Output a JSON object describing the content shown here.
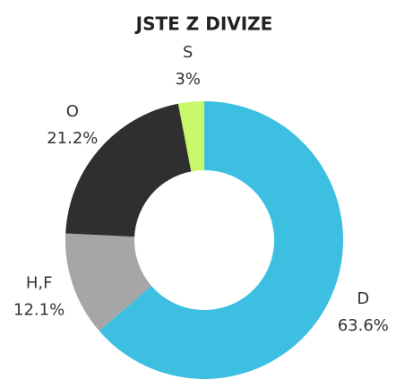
{
  "chart_data": {
    "type": "donut",
    "title": "JSTE Z DIVIZE",
    "categories": [
      "D",
      "H,F",
      "O",
      "S"
    ],
    "values": [
      63.6,
      12.1,
      21.2,
      3
    ],
    "value_labels": [
      "63.6%",
      "12.1%",
      "21.2%",
      "3%"
    ],
    "colors": [
      "#3cbfe0",
      "#a6a6a6",
      "#2f2f2f",
      "#c8f76a"
    ]
  }
}
